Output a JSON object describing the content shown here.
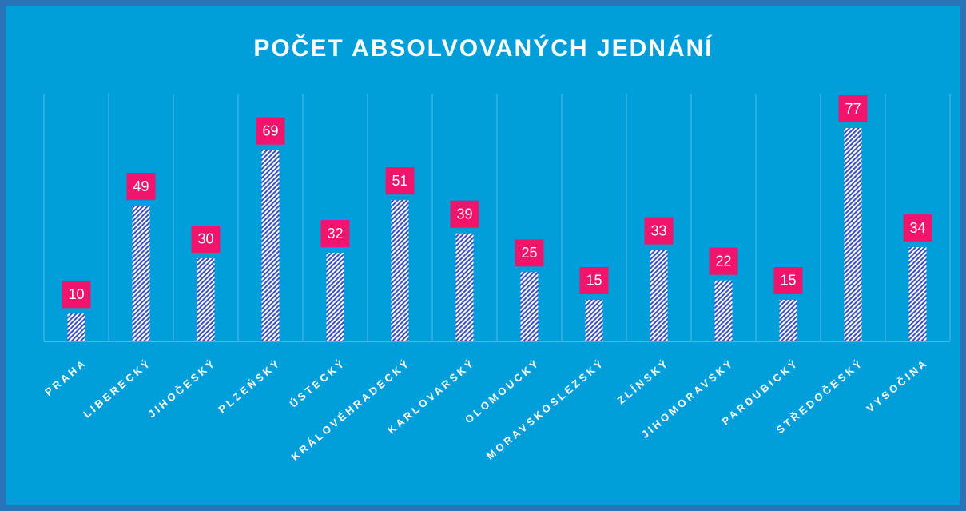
{
  "chart_data": {
    "type": "bar",
    "title": "POČET ABSOLVOVANÝCH JEDNÁNÍ",
    "categories": [
      "PRAHA",
      "LIBERECKÝ",
      "JIHOČESKÝ",
      "PLZEŇSKÝ",
      "ÚSTECKÝ",
      "KRÁLOVÉHRADECKÝ",
      "KARLOVARSKÝ",
      "OLOMOUCKÝ",
      "MORAVSKOSLEZSKÝ",
      "ZLÍNSKÝ",
      "JIHOMORAVSKÝ",
      "PARDUBICKÝ",
      "STŘEDOČESKÝ",
      "VYSOČINA"
    ],
    "values": [
      10,
      49,
      30,
      69,
      32,
      51,
      39,
      25,
      15,
      33,
      22,
      15,
      77,
      34
    ],
    "color": "#3a4fc0",
    "label_color": "#f0146c"
  }
}
